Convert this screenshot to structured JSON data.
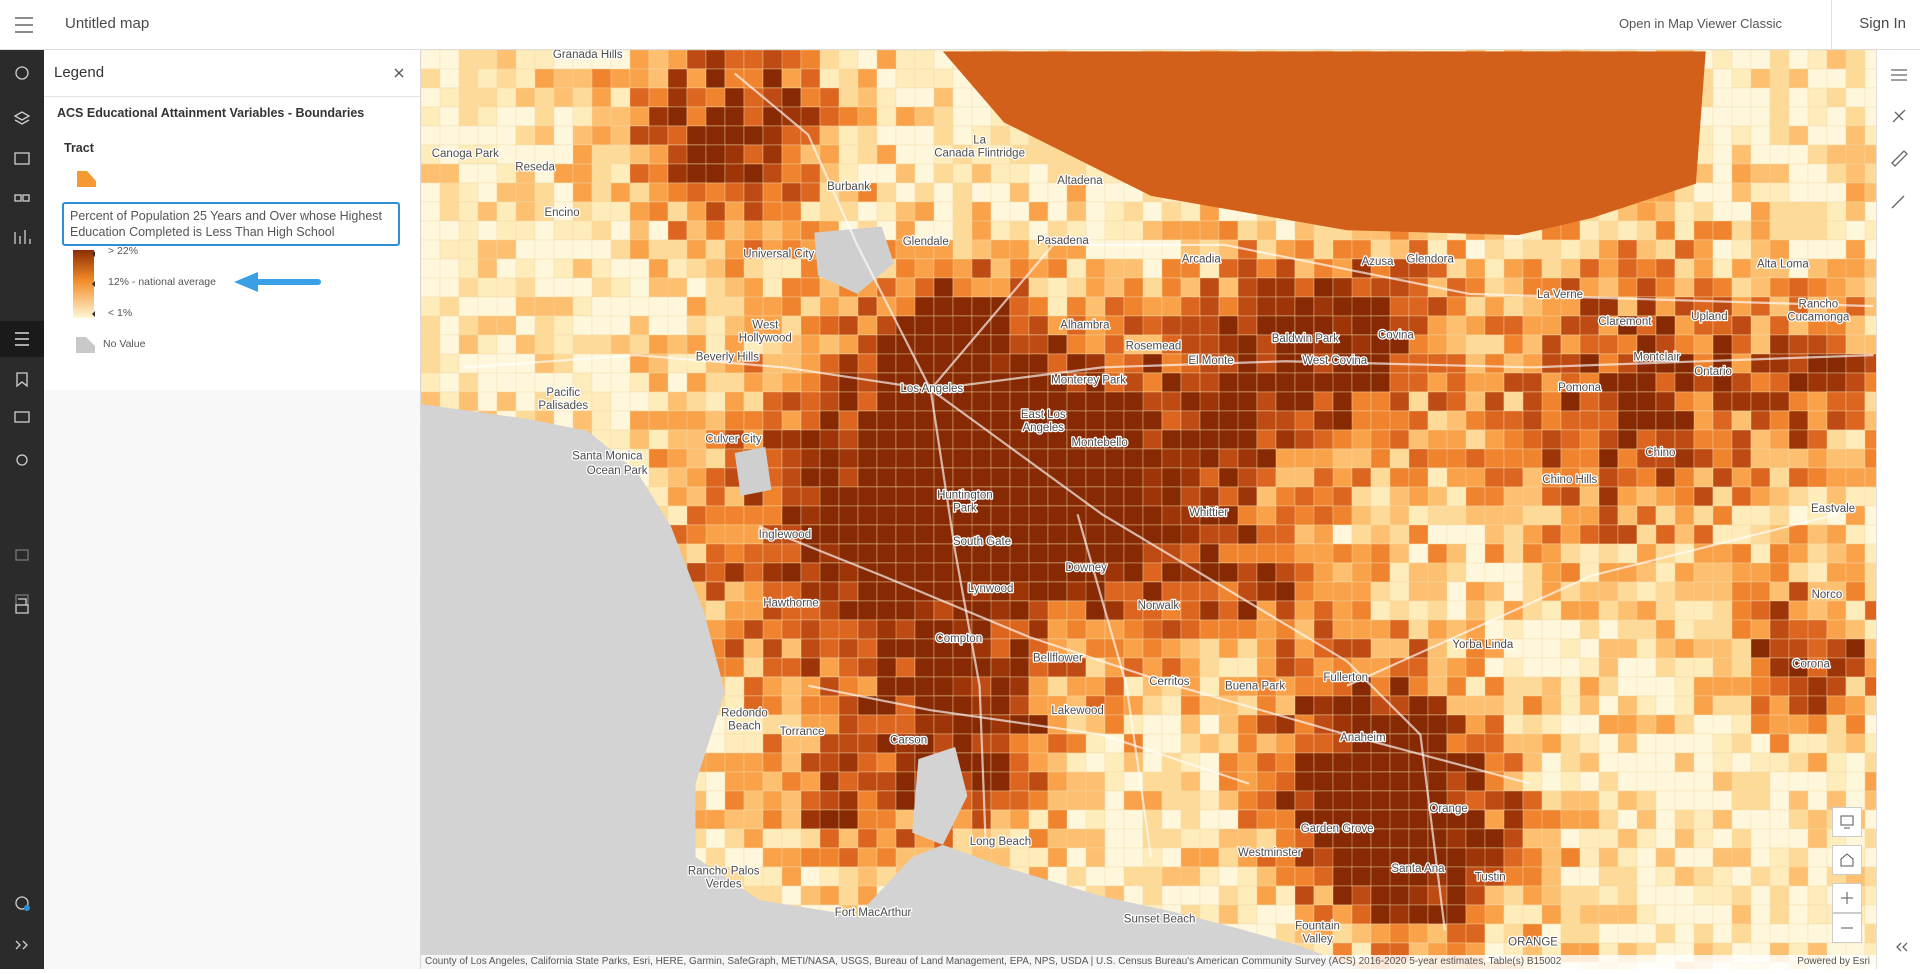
{
  "header": {
    "title": "Untitled map",
    "classic_link": "Open in Map Viewer Classic",
    "sign_in": "Sign In"
  },
  "legend": {
    "title": "Legend",
    "layer": "ACS Educational Attainment Variables - Boundaries",
    "sublayer": "Tract",
    "field": "Percent of Population 25 Years and Over whose Highest Education Completed is Less Than High School",
    "ramp_labels": [
      "> 22%",
      "12% - national average",
      "< 1%"
    ],
    "no_value": "No Value"
  },
  "map": {
    "place_labels": [
      "Granada Hills",
      "Canoga Park",
      "Reseda",
      "Encino",
      "Burbank",
      "La Canada Flintridge",
      "Altadena",
      "Glendale",
      "Pasadena",
      "Universal City",
      "Arcadia",
      "Azusa",
      "Glendora",
      "Alta Loma",
      "West Hollywood",
      "Beverly Hills",
      "La Verne",
      "Claremont",
      "Upland",
      "Rancho Cucamonga",
      "Alhambra",
      "Rosemead",
      "Baldwin Park",
      "Covina",
      "El Monte",
      "West Covina",
      "Montclair",
      "Pacific Palisades",
      "Los Angeles",
      "Monterey Park",
      "Pomona",
      "Ontario",
      "East Los Angeles",
      "Montebello",
      "Culver City",
      "Santa Monica",
      "Ocean Park",
      "Chino",
      "Chino Hills",
      "Huntington Park",
      "Whittier",
      "Eastvale",
      "Inglewood",
      "South Gate",
      "Downey",
      "Norco",
      "Hawthorne",
      "Lynwood",
      "Norwalk",
      "Compton",
      "Yorba Linda",
      "Corona",
      "Bellflower",
      "Cerritos",
      "Fullerton",
      "Buena Park",
      "Lakewood",
      "Redondo Beach",
      "Torrance",
      "Anaheim",
      "Carson",
      "Orange",
      "Garden Grove",
      "Long Beach",
      "Westminster",
      "Santa Ana",
      "Rancho Palos Verdes",
      "Tustin",
      "Fort MacArthur",
      "Sunset Beach",
      "Fountain Valley",
      "ORANGE"
    ],
    "attribution": "County of Los Angeles, California State Parks, Esri, HERE, Garmin, SafeGraph, METI/NASA, USGS, Bureau of Land Management, EPA, NPS, USDA | U.S. Census Bureau's American Community Survey (ACS) 2016-2020 5-year estimates, Table(s) B15002",
    "powered_by": "Powered by Esri"
  }
}
